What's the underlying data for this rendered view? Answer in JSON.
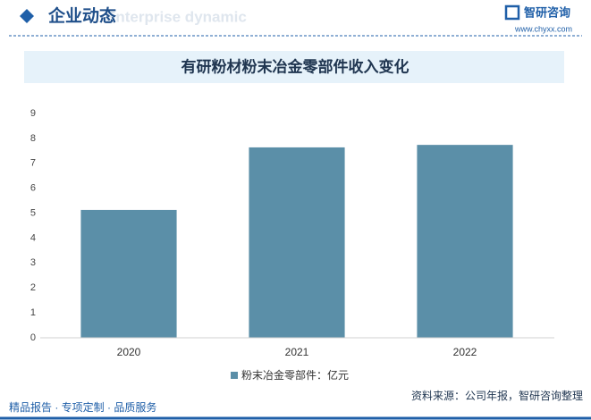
{
  "header": {
    "title": "企业动态",
    "subtitle": "Enterprise dynamic",
    "brand": "智研咨询",
    "website": "www.chyxx.com"
  },
  "chart_data": {
    "type": "bar",
    "title": "有研粉材粉末冶金零部件收入变化",
    "categories": [
      "2020",
      "2021",
      "2022"
    ],
    "series": [
      {
        "name": "粉末冶金零部件：亿元",
        "color": "#5b8fa8",
        "values": [
          5.13,
          7.64,
          7.74
        ]
      }
    ],
    "ylim": [
      0,
      9
    ],
    "yticks": [
      0,
      1,
      2,
      3,
      4,
      5,
      6,
      7,
      8,
      9
    ],
    "grid": false,
    "legend": "bottom"
  },
  "footer": {
    "left": "精品报告 · 专项定制 · 品质服务",
    "source": "资料来源：公司年报，智研咨询整理"
  }
}
